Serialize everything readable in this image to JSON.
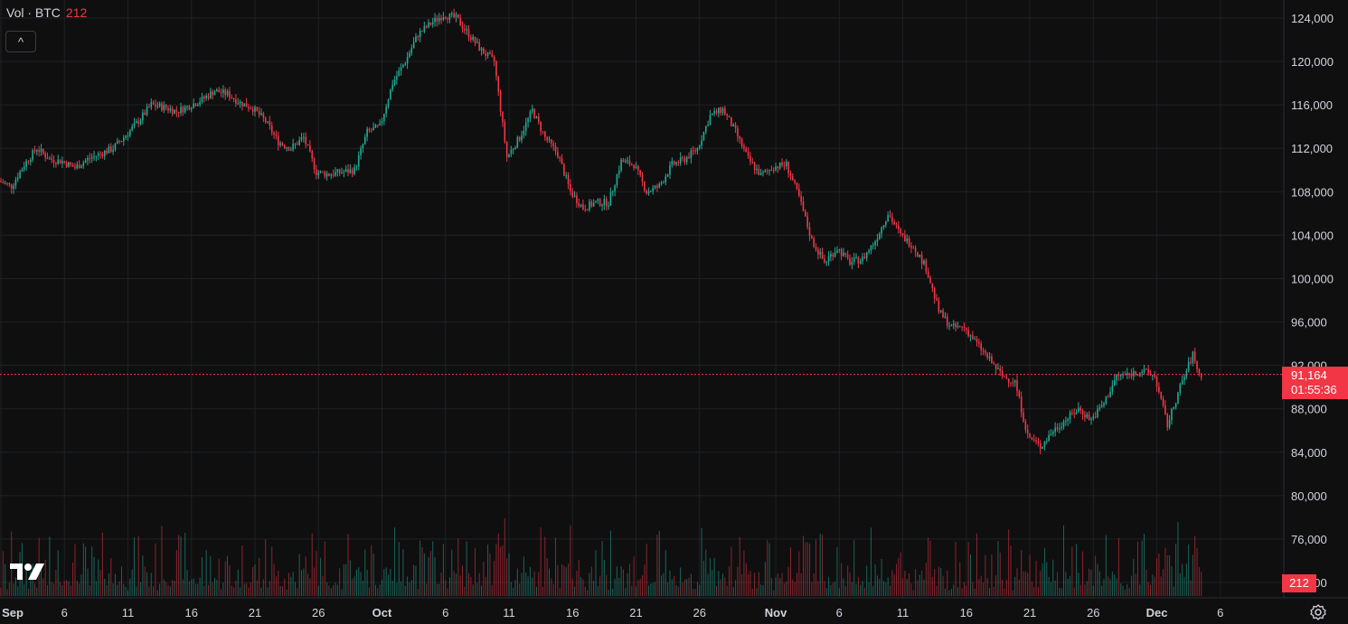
{
  "legend": {
    "name": "Vol · BTC",
    "value": "212"
  },
  "collapse_label": "^",
  "last_price": {
    "price": "91,164",
    "countdown": "01:55:36"
  },
  "volume_tag": "212",
  "colors": {
    "up": "#22ab94",
    "down": "#f23645",
    "background": "#0f0f10",
    "grid": "#1f2023",
    "text": "#d1d4dc"
  },
  "icons": {
    "logo": "tradingview-logo-icon",
    "settings": "settings-gear-icon"
  },
  "chart_data": {
    "type": "candlestick",
    "title": "",
    "xlabel": "",
    "ylabel": "",
    "ylim": [
      72000,
      126000
    ],
    "y_ticks": [
      "124,000",
      "120,000",
      "116,000",
      "112,000",
      "108,000",
      "104,000",
      "100,000",
      "96,000",
      "92,000",
      "88,000",
      "84,000",
      "80,000",
      "76,000",
      "72,000"
    ],
    "x_ticks": [
      "Sep",
      "6",
      "11",
      "16",
      "21",
      "26",
      "Oct",
      "6",
      "11",
      "16",
      "21",
      "26",
      "Nov",
      "6",
      "11",
      "16",
      "21",
      "26",
      "Dec",
      "6"
    ],
    "tick_days": [
      0,
      5,
      10,
      15,
      20,
      25,
      30,
      35,
      40,
      45,
      50,
      55,
      61,
      66,
      71,
      76,
      81,
      86,
      91,
      96
    ],
    "last_day": 94.5,
    "price_path": [
      [
        0,
        109000
      ],
      [
        1,
        108500
      ],
      [
        2,
        110500
      ],
      [
        3,
        112000
      ],
      [
        4,
        111000
      ],
      [
        5,
        110800
      ],
      [
        6,
        110200
      ],
      [
        7,
        111000
      ],
      [
        8,
        111500
      ],
      [
        9,
        112000
      ],
      [
        10,
        113200
      ],
      [
        11,
        114500
      ],
      [
        12,
        116000
      ],
      [
        13,
        115800
      ],
      [
        14,
        115400
      ],
      [
        15,
        115900
      ],
      [
        16,
        116500
      ],
      [
        17,
        117300
      ],
      [
        18,
        117000
      ],
      [
        19,
        116200
      ],
      [
        20,
        115700
      ],
      [
        21,
        114500
      ],
      [
        22,
        112600
      ],
      [
        23,
        112000
      ],
      [
        24,
        113000
      ],
      [
        25,
        109800
      ],
      [
        26,
        109600
      ],
      [
        27,
        109800
      ],
      [
        28,
        110000
      ],
      [
        29,
        113500
      ],
      [
        30,
        114000
      ],
      [
        31,
        118000
      ],
      [
        32,
        120000
      ],
      [
        33,
        122500
      ],
      [
        34,
        123500
      ],
      [
        35,
        124300
      ],
      [
        36,
        124000
      ],
      [
        37,
        122500
      ],
      [
        38,
        121000
      ],
      [
        39,
        120000
      ],
      [
        40,
        111200
      ],
      [
        41,
        113000
      ],
      [
        42,
        115500
      ],
      [
        43,
        113000
      ],
      [
        44,
        111500
      ],
      [
        45,
        108000
      ],
      [
        46,
        106500
      ],
      [
        47,
        107000
      ],
      [
        48,
        107000
      ],
      [
        49,
        110800
      ],
      [
        50,
        110500
      ],
      [
        51,
        108000
      ],
      [
        52,
        108500
      ],
      [
        53,
        110500
      ],
      [
        54,
        111000
      ],
      [
        55,
        112000
      ],
      [
        56,
        115000
      ],
      [
        57,
        115600
      ],
      [
        58,
        113500
      ],
      [
        59,
        111000
      ],
      [
        60,
        109500
      ],
      [
        61,
        110300
      ],
      [
        62,
        110500
      ],
      [
        63,
        107500
      ],
      [
        64,
        103500
      ],
      [
        65,
        101500
      ],
      [
        66,
        102800
      ],
      [
        67,
        101500
      ],
      [
        68,
        101800
      ],
      [
        69,
        103500
      ],
      [
        70,
        106000
      ],
      [
        71,
        104000
      ],
      [
        72,
        103000
      ],
      [
        73,
        101000
      ],
      [
        74,
        97000
      ],
      [
        75,
        95500
      ],
      [
        76,
        95500
      ],
      [
        77,
        94000
      ],
      [
        78,
        92500
      ],
      [
        79,
        91000
      ],
      [
        80,
        90500
      ],
      [
        81,
        85500
      ],
      [
        82,
        84500
      ],
      [
        83,
        86000
      ],
      [
        84,
        87000
      ],
      [
        85,
        88000
      ],
      [
        86,
        87000
      ],
      [
        87,
        88500
      ],
      [
        88,
        91000
      ],
      [
        89,
        91200
      ],
      [
        90,
        91500
      ],
      [
        91,
        91000
      ],
      [
        92,
        86500
      ],
      [
        93,
        90000
      ],
      [
        94,
        93000
      ],
      [
        94.5,
        91164
      ]
    ]
  }
}
